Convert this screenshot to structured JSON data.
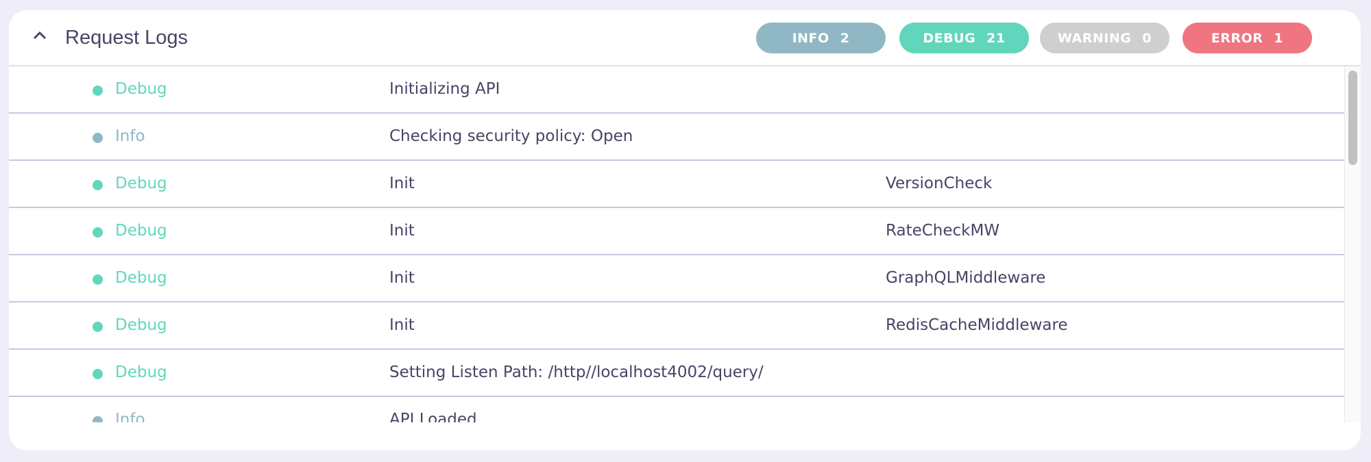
{
  "header": {
    "title": "Request Logs",
    "collapse_icon": "chevron-up-icon"
  },
  "badges": [
    {
      "label": "INFO",
      "count": "2",
      "color": "#8fb8c4"
    },
    {
      "label": "DEBUG",
      "count": "21",
      "color": "#62d6bc"
    },
    {
      "label": "WARNING",
      "count": "0",
      "color": "#cfcfcf"
    },
    {
      "label": "ERROR",
      "count": "1",
      "color": "#ef7580"
    }
  ],
  "colors": {
    "debug": "#62d6bc",
    "info": "#8fb8c4"
  },
  "rows": [
    {
      "level": "Debug",
      "message": "Initializing API",
      "source": ""
    },
    {
      "level": "Info",
      "message": "Checking security policy: Open",
      "source": ""
    },
    {
      "level": "Debug",
      "message": "Init",
      "source": "VersionCheck"
    },
    {
      "level": "Debug",
      "message": "Init",
      "source": "RateCheckMW"
    },
    {
      "level": "Debug",
      "message": "Init",
      "source": "GraphQLMiddleware"
    },
    {
      "level": "Debug",
      "message": "Init",
      "source": "RedisCacheMiddleware"
    },
    {
      "level": "Debug",
      "message": "Setting Listen Path: /http//localhost4002/query/",
      "source": ""
    },
    {
      "level": "Info",
      "message": "API Loaded",
      "source": ""
    }
  ]
}
